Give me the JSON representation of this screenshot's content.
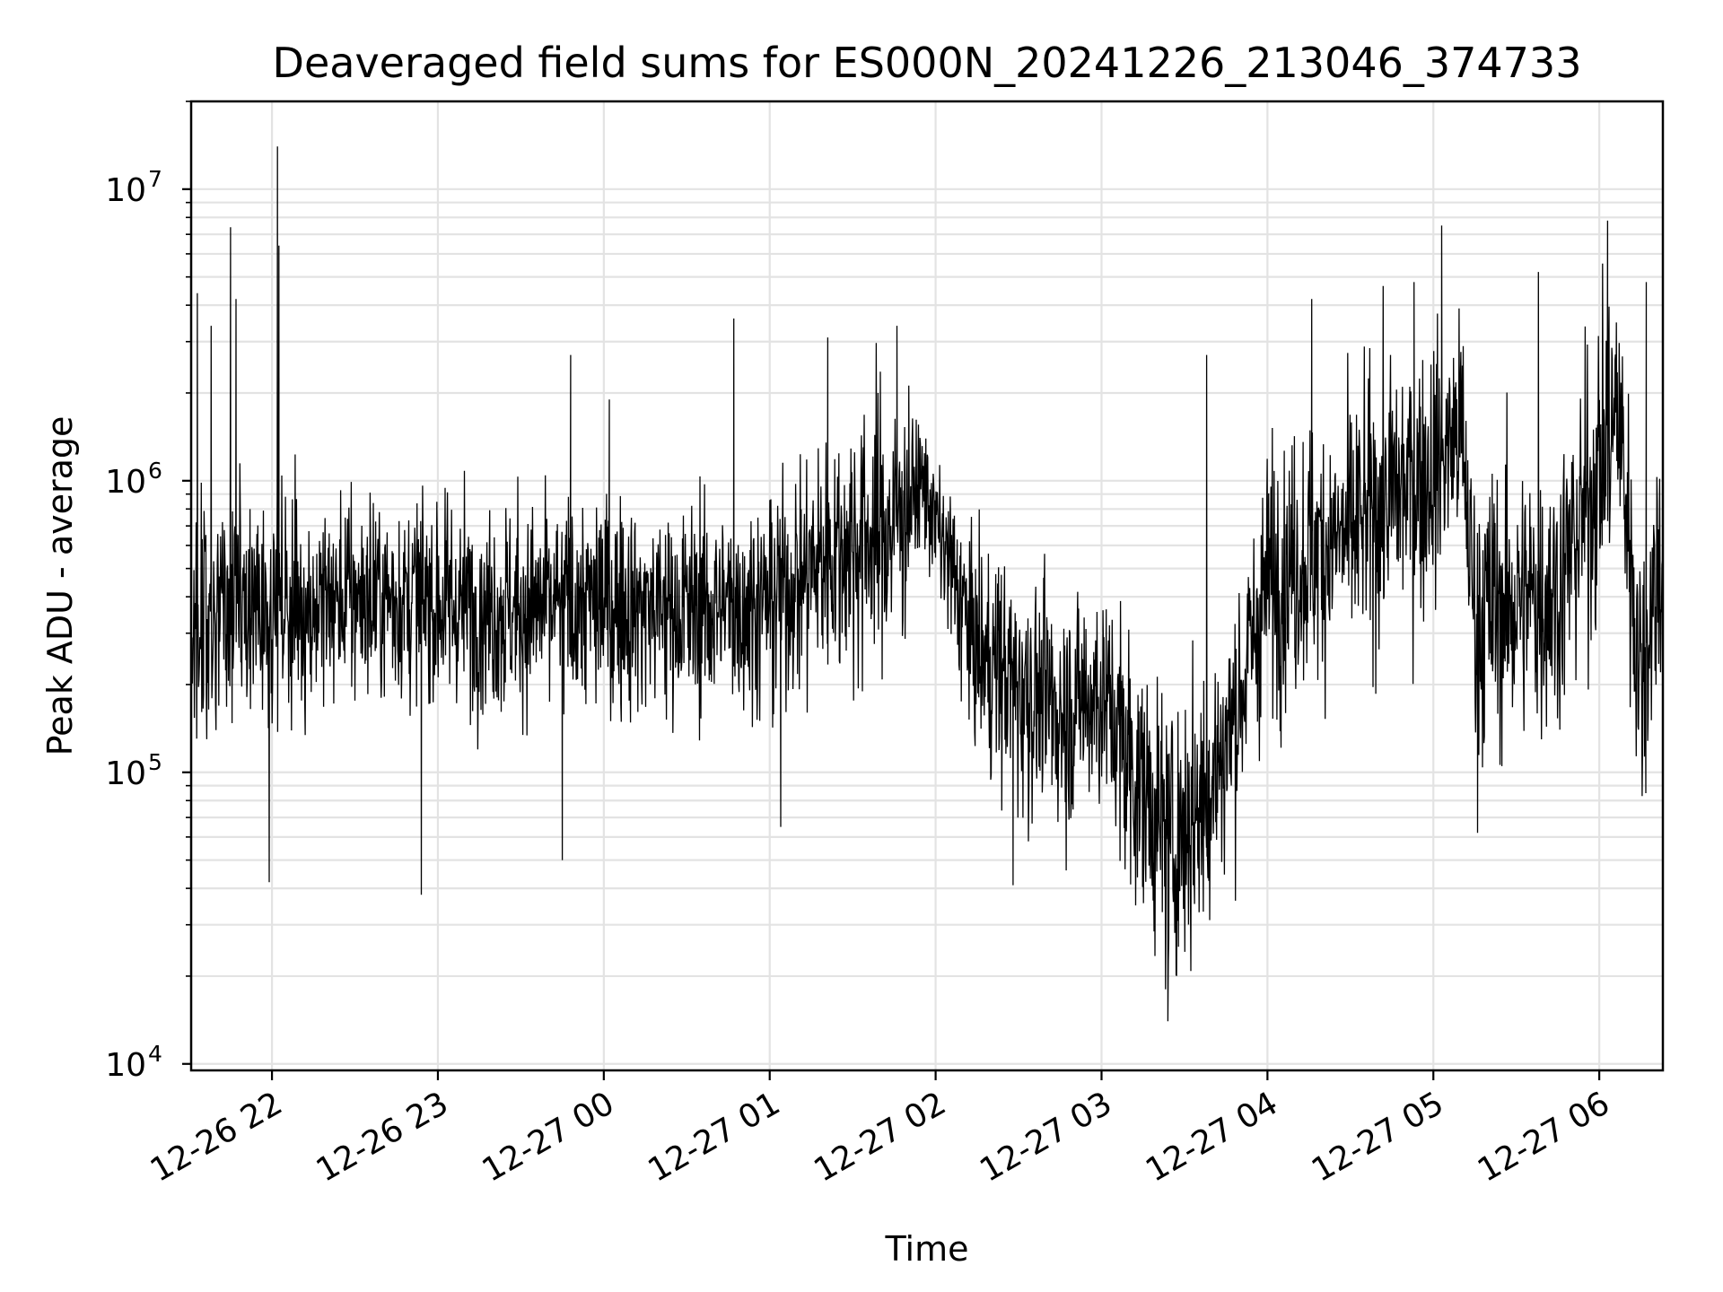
{
  "chart_data": {
    "type": "line",
    "title": "Deaveraged field sums for ES000N_20241226_213046_374733",
    "xlabel": "Time",
    "ylabel": "Peak ADU - average",
    "yscale": "log",
    "ylim": [
      9500,
      20000000
    ],
    "xlim": [
      "2024-12-26T21:30:46",
      "2024-12-27T06:23:00"
    ],
    "grid": true,
    "line_color": "#000000",
    "grid_color": "#e3e3e3",
    "x_ticks": [
      "12-26 22",
      "12-26 23",
      "12-27 00",
      "12-27 01",
      "12-27 02",
      "12-27 03",
      "12-27 04",
      "12-27 05",
      "12-27 06"
    ],
    "y_ticks": [
      {
        "base": "10",
        "exp": "4"
      },
      {
        "base": "10",
        "exp": "5"
      },
      {
        "base": "10",
        "exp": "6"
      },
      {
        "base": "10",
        "exp": "7"
      }
    ],
    "series": [
      {
        "x": [
          "2024-12-26T21:30:46",
          "2024-12-26T21:40:00",
          "2024-12-26T21:50:00",
          "2024-12-26T22:00:00",
          "2024-12-26T22:15:00",
          "2024-12-26T22:30:00",
          "2024-12-26T22:45:00",
          "2024-12-26T23:00:00",
          "2024-12-26T23:30:00",
          "2024-12-27T00:00:00",
          "2024-12-27T00:30:00",
          "2024-12-27T01:00:00",
          "2024-12-27T01:15:00",
          "2024-12-27T01:30:00",
          "2024-12-27T01:45:00",
          "2024-12-27T01:55:00",
          "2024-12-27T02:15:00",
          "2024-12-27T02:30:00",
          "2024-12-27T02:45:00",
          "2024-12-27T03:00:00",
          "2024-12-27T03:10:00",
          "2024-12-27T03:25:00",
          "2024-12-27T03:40:00",
          "2024-12-27T03:50:00",
          "2024-12-27T04:00:00",
          "2024-12-27T04:15:00",
          "2024-12-27T04:30:00",
          "2024-12-27T04:45:00",
          "2024-12-27T05:00:00",
          "2024-12-27T05:10:00",
          "2024-12-27T05:15:00",
          "2024-12-27T05:30:00",
          "2024-12-27T05:45:00",
          "2024-12-27T06:00:00",
          "2024-12-27T06:07:00",
          "2024-12-27T06:15:00",
          "2024-12-27T06:23:00"
        ],
        "values": [
          330000,
          380000,
          360000,
          380000,
          370000,
          400000,
          400000,
          380000,
          360000,
          380000,
          360000,
          380000,
          500000,
          620000,
          700000,
          1000000,
          260000,
          200000,
          160000,
          190000,
          110000,
          55000,
          90000,
          180000,
          450000,
          560000,
          650000,
          900000,
          1100000,
          1500000,
          350000,
          380000,
          420000,
          1100000,
          1800000,
          200000,
          650000
        ],
        "noise_sigma_dex": [
          0.19,
          0.2,
          0.19,
          0.18,
          0.19,
          0.18,
          0.18,
          0.18,
          0.18,
          0.18,
          0.18,
          0.18,
          0.2,
          0.24,
          0.24,
          0.1,
          0.18,
          0.2,
          0.2,
          0.2,
          0.22,
          0.23,
          0.23,
          0.2,
          0.22,
          0.22,
          0.22,
          0.24,
          0.22,
          0.2,
          0.24,
          0.24,
          0.24,
          0.25,
          0.25,
          0.25,
          0.25
        ],
        "spikes": [
          {
            "x": "2024-12-26T21:33:00",
            "y": 4400000
          },
          {
            "x": "2024-12-26T21:38:00",
            "y": 3400000
          },
          {
            "x": "2024-12-26T21:45:00",
            "y": 7400000
          },
          {
            "x": "2024-12-26T21:47:00",
            "y": 4200000
          },
          {
            "x": "2024-12-26T22:02:00",
            "y": 14000000
          },
          {
            "x": "2024-12-26T22:02:30",
            "y": 6400000
          },
          {
            "x": "2024-12-26T23:48:00",
            "y": 2700000
          },
          {
            "x": "2024-12-27T00:02:00",
            "y": 1900000
          },
          {
            "x": "2024-12-27T00:47:00",
            "y": 3600000
          },
          {
            "x": "2024-12-27T01:21:00",
            "y": 3100000
          },
          {
            "x": "2024-12-27T01:46:00",
            "y": 3400000
          },
          {
            "x": "2024-12-27T03:38:00",
            "y": 2700000
          },
          {
            "x": "2024-12-27T04:16:00",
            "y": 4200000
          },
          {
            "x": "2024-12-27T04:53:00",
            "y": 4800000
          },
          {
            "x": "2024-12-27T05:03:00",
            "y": 7500000
          },
          {
            "x": "2024-12-27T05:38:00",
            "y": 5200000
          },
          {
            "x": "2024-12-27T06:03:00",
            "y": 7800000
          },
          {
            "x": "2024-12-27T06:17:00",
            "y": 4800000
          }
        ],
        "dips": [
          {
            "x": "2024-12-26T21:59:00",
            "y": 42000
          },
          {
            "x": "2024-12-26T22:54:00",
            "y": 38000
          },
          {
            "x": "2024-12-26T23:45:00",
            "y": 50000
          },
          {
            "x": "2024-12-27T01:04:00",
            "y": 65000
          },
          {
            "x": "2024-12-27T02:28:00",
            "y": 41000
          },
          {
            "x": "2024-12-27T03:24:00",
            "y": 14000
          },
          {
            "x": "2024-12-27T05:16:00",
            "y": 62000
          }
        ]
      }
    ]
  }
}
